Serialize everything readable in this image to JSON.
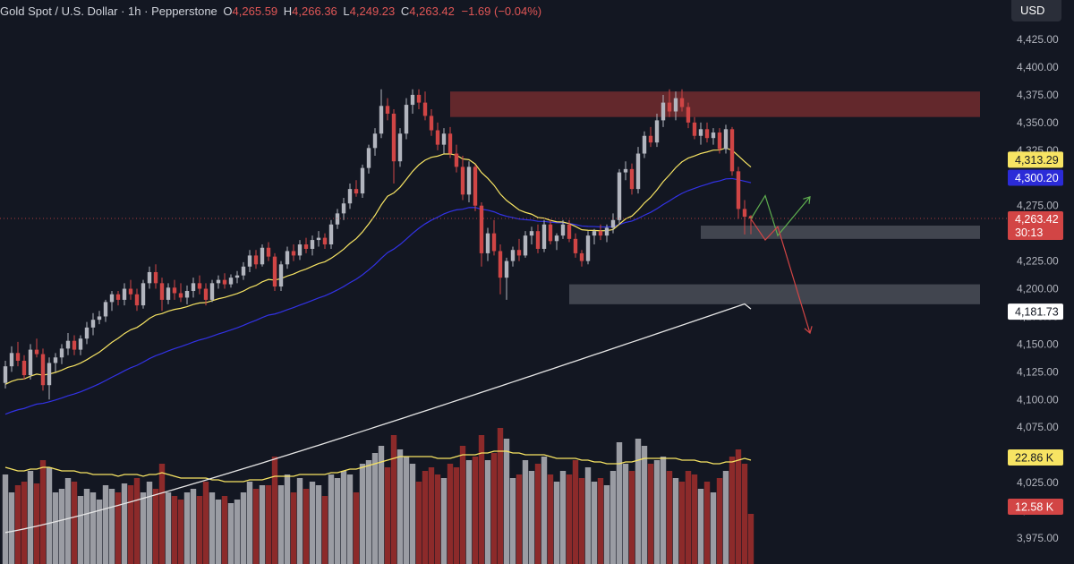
{
  "header": {
    "symbol": "Gold Spot / U.S. Dollar · 1h · Pepperstone",
    "open_key": "O",
    "open_val": "4,265.59",
    "high_key": "H",
    "high_val": "4,266.36",
    "low_key": "L",
    "low_val": "4,249.23",
    "close_key": "C",
    "close_val": "4,263.42",
    "change": "−1.69 (−0.04%)"
  },
  "currency_button": "USD",
  "price_scale": {
    "ticks": [
      "4,425.00",
      "4,400.00",
      "4,375.00",
      "4,350.00",
      "4,325.00",
      "4,300.00",
      "4,275.00",
      "4,250.00",
      "4,225.00",
      "4,200.00",
      "4,175.00",
      "4,150.00",
      "4,125.00",
      "4,100.00",
      "4,075.00",
      "4,050.00",
      "4,025.00",
      "4,000.00",
      "3,975.00"
    ],
    "tick_values": [
      4425,
      4400,
      4375,
      4350,
      4325,
      4300,
      4275,
      4250,
      4225,
      4200,
      4175,
      4150,
      4125,
      4100,
      4075,
      4050,
      4025,
      4000,
      3975
    ]
  },
  "markers": {
    "ma20": {
      "label": "4,313.29",
      "value": 4313.29,
      "color": "#f7e463"
    },
    "ma50": {
      "label": "4,300.20",
      "value": 4300.2,
      "color": "#3030e0"
    },
    "last_price": {
      "label": "4,263.42",
      "value": 4263.42,
      "countdown": "30:13",
      "color": "#d24545"
    },
    "ma200": {
      "label": "4,181.73",
      "value": 4181.73,
      "color": "#ffffff"
    },
    "volume_ma": {
      "label": "22.86 K",
      "color": "#f7e463"
    },
    "volume": {
      "label": "12.58 K",
      "color": "#d24545"
    }
  },
  "colors": {
    "background": "#131722",
    "candle_up": "#b2b5be",
    "candle_down": "#d04545",
    "volume_up": "#9a9ca3",
    "volume_down": "#8c2a2a",
    "ma20": "#f7e463",
    "ma50": "#3232e6",
    "ma200": "#e6e6e6",
    "resistance_zone": "#6d2a2e",
    "support_zone": "#4a4d57",
    "arrow_up": "#5fae4f",
    "arrow_down": "#d24545"
  },
  "chart_data": {
    "type": "candlestick",
    "title": "Gold Spot / U.S. Dollar · 1h · Pepperstone",
    "ylim": [
      3965,
      4445
    ],
    "grid": false,
    "candles": [
      [
        4115,
        4135,
        4110,
        4130
      ],
      [
        4130,
        4148,
        4125,
        4142
      ],
      [
        4142,
        4152,
        4130,
        4135
      ],
      [
        4135,
        4140,
        4118,
        4122
      ],
      [
        4122,
        4150,
        4118,
        4145
      ],
      [
        4145,
        4155,
        4138,
        4141
      ],
      [
        4141,
        4146,
        4108,
        4113
      ],
      [
        4113,
        4138,
        4100,
        4133
      ],
      [
        4133,
        4142,
        4125,
        4138
      ],
      [
        4138,
        4150,
        4132,
        4146
      ],
      [
        4146,
        4160,
        4140,
        4153
      ],
      [
        4153,
        4158,
        4140,
        4145
      ],
      [
        4145,
        4158,
        4140,
        4155
      ],
      [
        4155,
        4170,
        4150,
        4165
      ],
      [
        4165,
        4178,
        4158,
        4172
      ],
      [
        4172,
        4180,
        4168,
        4175
      ],
      [
        4175,
        4190,
        4170,
        4188
      ],
      [
        4188,
        4198,
        4180,
        4195
      ],
      [
        4195,
        4198,
        4185,
        4190
      ],
      [
        4190,
        4205,
        4185,
        4200
      ],
      [
        4200,
        4208,
        4190,
        4195
      ],
      [
        4195,
        4200,
        4180,
        4185
      ],
      [
        4185,
        4208,
        4182,
        4205
      ],
      [
        4205,
        4220,
        4200,
        4215
      ],
      [
        4215,
        4222,
        4200,
        4205
      ],
      [
        4205,
        4210,
        4180,
        4190
      ],
      [
        4190,
        4205,
        4186,
        4201
      ],
      [
        4201,
        4208,
        4190,
        4196
      ],
      [
        4196,
        4205,
        4188,
        4192
      ],
      [
        4192,
        4203,
        4186,
        4198
      ],
      [
        4198,
        4210,
        4192,
        4205
      ],
      [
        4205,
        4212,
        4195,
        4200
      ],
      [
        4200,
        4205,
        4185,
        4190
      ],
      [
        4190,
        4208,
        4188,
        4205
      ],
      [
        4205,
        4212,
        4200,
        4208
      ],
      [
        4208,
        4214,
        4200,
        4204
      ],
      [
        4204,
        4213,
        4201,
        4210
      ],
      [
        4210,
        4216,
        4205,
        4212
      ],
      [
        4212,
        4224,
        4208,
        4220
      ],
      [
        4220,
        4235,
        4215,
        4230
      ],
      [
        4230,
        4235,
        4218,
        4222
      ],
      [
        4222,
        4240,
        4220,
        4237
      ],
      [
        4237,
        4242,
        4225,
        4229
      ],
      [
        4229,
        4232,
        4198,
        4202
      ],
      [
        4202,
        4225,
        4198,
        4222
      ],
      [
        4222,
        4238,
        4218,
        4234
      ],
      [
        4234,
        4240,
        4225,
        4230
      ],
      [
        4230,
        4244,
        4226,
        4240
      ],
      [
        4240,
        4246,
        4232,
        4236
      ],
      [
        4236,
        4248,
        4230,
        4244
      ],
      [
        4244,
        4252,
        4238,
        4246
      ],
      [
        4246,
        4250,
        4236,
        4240
      ],
      [
        4240,
        4262,
        4236,
        4258
      ],
      [
        4258,
        4272,
        4254,
        4268
      ],
      [
        4268,
        4282,
        4262,
        4277
      ],
      [
        4277,
        4295,
        4272,
        4290
      ],
      [
        4290,
        4298,
        4283,
        4286
      ],
      [
        4286,
        4312,
        4282,
        4309
      ],
      [
        4309,
        4330,
        4304,
        4327
      ],
      [
        4327,
        4345,
        4320,
        4340
      ],
      [
        4340,
        4380,
        4336,
        4365
      ],
      [
        4365,
        4372,
        4352,
        4358
      ],
      [
        4358,
        4362,
        4295,
        4315
      ],
      [
        4315,
        4345,
        4310,
        4340
      ],
      [
        4340,
        4372,
        4335,
        4366
      ],
      [
        4366,
        4380,
        4358,
        4375
      ],
      [
        4375,
        4380,
        4362,
        4368
      ],
      [
        4368,
        4378,
        4352,
        4356
      ],
      [
        4356,
        4362,
        4338,
        4343
      ],
      [
        4343,
        4350,
        4325,
        4330
      ],
      [
        4330,
        4345,
        4322,
        4340
      ],
      [
        4340,
        4346,
        4318,
        4322
      ],
      [
        4322,
        4330,
        4305,
        4310
      ],
      [
        4310,
        4320,
        4280,
        4285
      ],
      [
        4285,
        4315,
        4278,
        4310
      ],
      [
        4310,
        4312,
        4270,
        4275
      ],
      [
        4275,
        4278,
        4220,
        4232
      ],
      [
        4232,
        4255,
        4225,
        4250
      ],
      [
        4250,
        4262,
        4230,
        4234
      ],
      [
        4234,
        4240,
        4195,
        4210
      ],
      [
        4210,
        4228,
        4190,
        4225
      ],
      [
        4225,
        4238,
        4220,
        4235
      ],
      [
        4235,
        4245,
        4225,
        4230
      ],
      [
        4230,
        4252,
        4228,
        4248
      ],
      [
        4248,
        4256,
        4240,
        4252
      ],
      [
        4252,
        4258,
        4232,
        4236
      ],
      [
        4236,
        4262,
        4233,
        4258
      ],
      [
        4258,
        4262,
        4240,
        4243
      ],
      [
        4243,
        4250,
        4235,
        4248
      ],
      [
        4248,
        4262,
        4245,
        4258
      ],
      [
        4258,
        4262,
        4242,
        4245
      ],
      [
        4245,
        4250,
        4228,
        4232
      ],
      [
        4232,
        4235,
        4220,
        4225
      ],
      [
        4225,
        4252,
        4222,
        4248
      ],
      [
        4248,
        4254,
        4240,
        4252
      ],
      [
        4252,
        4258,
        4244,
        4248
      ],
      [
        4248,
        4258,
        4242,
        4255
      ],
      [
        4255,
        4268,
        4250,
        4262
      ],
      [
        4262,
        4308,
        4258,
        4305
      ],
      [
        4305,
        4315,
        4298,
        4308
      ],
      [
        4308,
        4313,
        4285,
        4290
      ],
      [
        4290,
        4328,
        4286,
        4322
      ],
      [
        4322,
        4342,
        4318,
        4338
      ],
      [
        4338,
        4346,
        4328,
        4332
      ],
      [
        4332,
        4358,
        4328,
        4352
      ],
      [
        4352,
        4375,
        4346,
        4368
      ],
      [
        4368,
        4380,
        4355,
        4360
      ],
      [
        4360,
        4378,
        4352,
        4372
      ],
      [
        4372,
        4380,
        4360,
        4364
      ],
      [
        4364,
        4368,
        4345,
        4350
      ],
      [
        4350,
        4355,
        4335,
        4338
      ],
      [
        4338,
        4350,
        4330,
        4344
      ],
      [
        4344,
        4350,
        4332,
        4336
      ],
      [
        4336,
        4345,
        4330,
        4341
      ],
      [
        4341,
        4345,
        4322,
        4326
      ],
      [
        4326,
        4348,
        4322,
        4344
      ],
      [
        4344,
        4346,
        4302,
        4306
      ],
      [
        4306,
        4310,
        4263,
        4272
      ],
      [
        4272,
        4280,
        4249,
        4265
      ],
      [
        4265.59,
        4266.36,
        4249.23,
        4263.42
      ]
    ],
    "volume_overlay_top_price": 4080,
    "volumes": [
      [
        50,
        1
      ],
      [
        40,
        1
      ],
      [
        44,
        0
      ],
      [
        46,
        0
      ],
      [
        52,
        1
      ],
      [
        45,
        0
      ],
      [
        58,
        0
      ],
      [
        54,
        1
      ],
      [
        40,
        1
      ],
      [
        42,
        1
      ],
      [
        48,
        1
      ],
      [
        46,
        0
      ],
      [
        38,
        1
      ],
      [
        42,
        1
      ],
      [
        40,
        1
      ],
      [
        36,
        1
      ],
      [
        44,
        1
      ],
      [
        42,
        1
      ],
      [
        40,
        0
      ],
      [
        45,
        1
      ],
      [
        44,
        0
      ],
      [
        48,
        0
      ],
      [
        40,
        1
      ],
      [
        46,
        1
      ],
      [
        42,
        0
      ],
      [
        56,
        0
      ],
      [
        40,
        1
      ],
      [
        38,
        0
      ],
      [
        36,
        0
      ],
      [
        40,
        1
      ],
      [
        42,
        1
      ],
      [
        38,
        0
      ],
      [
        46,
        0
      ],
      [
        40,
        1
      ],
      [
        36,
        1
      ],
      [
        38,
        0
      ],
      [
        34,
        1
      ],
      [
        36,
        1
      ],
      [
        40,
        1
      ],
      [
        46,
        1
      ],
      [
        42,
        0
      ],
      [
        44,
        1
      ],
      [
        44,
        0
      ],
      [
        60,
        0
      ],
      [
        44,
        1
      ],
      [
        50,
        1
      ],
      [
        40,
        0
      ],
      [
        48,
        1
      ],
      [
        42,
        0
      ],
      [
        46,
        1
      ],
      [
        44,
        1
      ],
      [
        38,
        0
      ],
      [
        50,
        1
      ],
      [
        48,
        1
      ],
      [
        52,
        1
      ],
      [
        50,
        1
      ],
      [
        40,
        0
      ],
      [
        56,
        1
      ],
      [
        58,
        1
      ],
      [
        62,
        1
      ],
      [
        66,
        1
      ],
      [
        54,
        0
      ],
      [
        72,
        0
      ],
      [
        64,
        1
      ],
      [
        60,
        1
      ],
      [
        56,
        1
      ],
      [
        46,
        0
      ],
      [
        52,
        0
      ],
      [
        54,
        0
      ],
      [
        50,
        0
      ],
      [
        48,
        1
      ],
      [
        56,
        0
      ],
      [
        54,
        0
      ],
      [
        66,
        0
      ],
      [
        58,
        1
      ],
      [
        60,
        0
      ],
      [
        72,
        0
      ],
      [
        58,
        1
      ],
      [
        62,
        0
      ],
      [
        76,
        0
      ],
      [
        70,
        1
      ],
      [
        48,
        1
      ],
      [
        50,
        0
      ],
      [
        58,
        1
      ],
      [
        52,
        1
      ],
      [
        56,
        0
      ],
      [
        60,
        1
      ],
      [
        50,
        0
      ],
      [
        46,
        1
      ],
      [
        52,
        1
      ],
      [
        50,
        0
      ],
      [
        58,
        0
      ],
      [
        48,
        0
      ],
      [
        54,
        1
      ],
      [
        46,
        1
      ],
      [
        48,
        0
      ],
      [
        44,
        1
      ],
      [
        52,
        1
      ],
      [
        68,
        1
      ],
      [
        56,
        1
      ],
      [
        52,
        0
      ],
      [
        70,
        1
      ],
      [
        66,
        1
      ],
      [
        56,
        0
      ],
      [
        58,
        1
      ],
      [
        60,
        1
      ],
      [
        52,
        0
      ],
      [
        48,
        1
      ],
      [
        46,
        0
      ],
      [
        52,
        0
      ],
      [
        50,
        0
      ],
      [
        42,
        1
      ],
      [
        46,
        0
      ],
      [
        40,
        1
      ],
      [
        48,
        0
      ],
      [
        52,
        1
      ],
      [
        60,
        0
      ],
      [
        64,
        0
      ],
      [
        56,
        0
      ],
      [
        28,
        0
      ]
    ],
    "volume_ma": [
      48,
      47,
      46,
      46,
      47,
      47,
      48,
      48,
      47,
      46,
      46,
      46,
      45,
      45,
      44,
      44,
      44,
      44,
      43,
      44,
      44,
      44,
      43,
      44,
      44,
      45,
      44,
      43,
      42,
      42,
      42,
      42,
      42,
      41,
      41,
      40,
      40,
      40,
      40,
      41,
      41,
      41,
      42,
      43,
      43,
      43,
      43,
      44,
      44,
      44,
      44,
      44,
      45,
      45,
      46,
      47,
      47,
      48,
      49,
      50,
      51,
      52,
      53,
      54,
      54,
      54,
      54,
      54,
      54,
      53,
      53,
      53,
      54,
      55,
      55,
      55,
      56,
      56,
      57,
      57,
      57,
      56,
      56,
      55,
      55,
      55,
      55,
      54,
      53,
      53,
      53,
      53,
      52,
      52,
      51,
      51,
      50,
      50,
      50,
      51,
      51,
      52,
      53,
      53,
      53,
      53,
      53,
      53,
      52,
      52,
      52,
      51,
      51,
      50,
      50,
      51,
      51,
      52,
      53,
      52
    ],
    "zones": [
      {
        "name": "resistance",
        "x0": 71,
        "x1": 155,
        "y_top": 4378,
        "y_bottom": 4355
      },
      {
        "name": "support-upper",
        "x0": 111,
        "x1": 155,
        "y_top": 4257,
        "y_bottom": 4245
      },
      {
        "name": "support-lower",
        "x0": 90,
        "x1": 155,
        "y_top": 4204,
        "y_bottom": 4186
      }
    ],
    "scenario_up": [
      [
        4263,
        4256
      ],
      [
        4284,
        4290
      ],
      [
        4248,
        4256
      ],
      [
        4283,
        4343
      ]
    ],
    "scenario_down": [
      [
        4263,
        4256
      ],
      [
        4244,
        4220
      ],
      [
        4256,
        4256
      ],
      [
        4160,
        4138
      ]
    ]
  }
}
